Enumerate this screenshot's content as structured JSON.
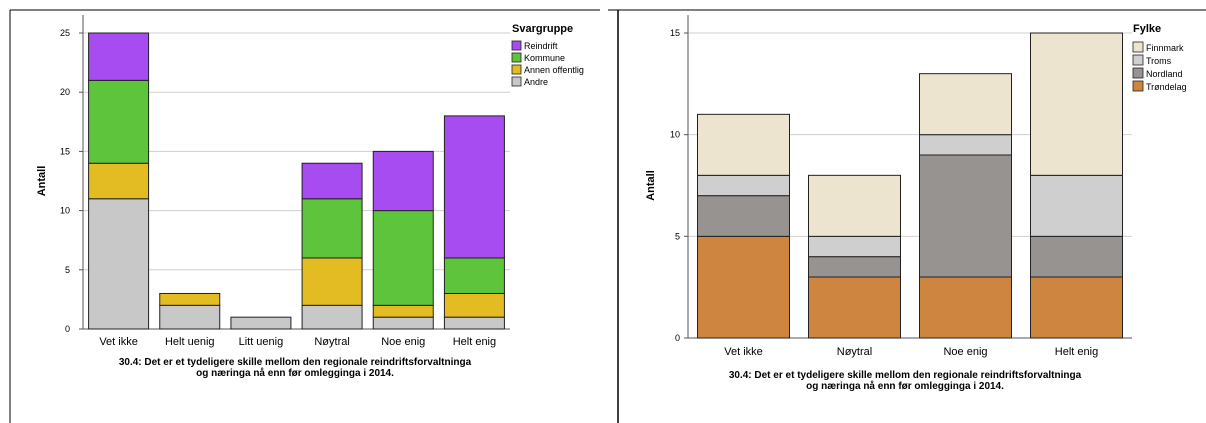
{
  "chart_data": [
    {
      "type": "bar",
      "stacked": true,
      "categories": [
        "Vet ikke",
        "Helt uenig",
        "Litt uenig",
        "Nøytral",
        "Noe enig",
        "Helt enig"
      ],
      "series": [
        {
          "name": "Andre",
          "color": "#c8c8c8",
          "values": [
            11,
            2,
            1,
            2,
            1,
            1
          ]
        },
        {
          "name": "Annen offentlig",
          "color": "#e3bb22",
          "values": [
            3,
            1,
            0,
            4,
            1,
            2
          ]
        },
        {
          "name": "Kommune",
          "color": "#5ec43c",
          "values": [
            7,
            0,
            0,
            5,
            8,
            3
          ]
        },
        {
          "name": "Reindrift",
          "color": "#a64cf0",
          "values": [
            4,
            0,
            0,
            3,
            5,
            12
          ]
        }
      ],
      "legend_title": "Svargruppe",
      "legend_order": [
        "Reindrift",
        "Kommune",
        "Annen offentlig",
        "Andre"
      ],
      "ylabel": "Antall",
      "ylim": [
        0,
        25
      ],
      "yticks": [
        0,
        5,
        10,
        15,
        20,
        25
      ],
      "grid": true,
      "legend_position": "top-right",
      "caption_lines": [
        "30.4: Det er et tydeligere skille mellom den regionale reindriftsforvaltninga",
        "og næringa nå enn før omlegginga i 2014."
      ]
    },
    {
      "type": "bar",
      "stacked": true,
      "categories": [
        "Vet ikke",
        "Nøytral",
        "Noe enig",
        "Helt enig"
      ],
      "series": [
        {
          "name": "Trøndelag",
          "color": "#cd853f",
          "values": [
            5,
            3,
            3,
            3
          ]
        },
        {
          "name": "Nordland",
          "color": "#979391",
          "values": [
            2,
            1,
            6,
            2
          ]
        },
        {
          "name": "Troms",
          "color": "#cfcfcf",
          "values": [
            1,
            1,
            1,
            3
          ]
        },
        {
          "name": "Finnmark",
          "color": "#ede4d0",
          "values": [
            3,
            3,
            3,
            7
          ]
        }
      ],
      "legend_title": "Fylke",
      "legend_order": [
        "Finnmark",
        "Troms",
        "Nordland",
        "Trøndelag"
      ],
      "ylabel": "Antall",
      "ylim": [
        0,
        15
      ],
      "yticks": [
        0,
        5,
        10,
        15
      ],
      "grid": true,
      "legend_position": "top-right",
      "caption_lines": [
        "30.4: Det er et tydeligere skille mellom den regionale reindriftsforvaltninga",
        "og næringa nå enn før omlegginga i 2014."
      ]
    }
  ]
}
